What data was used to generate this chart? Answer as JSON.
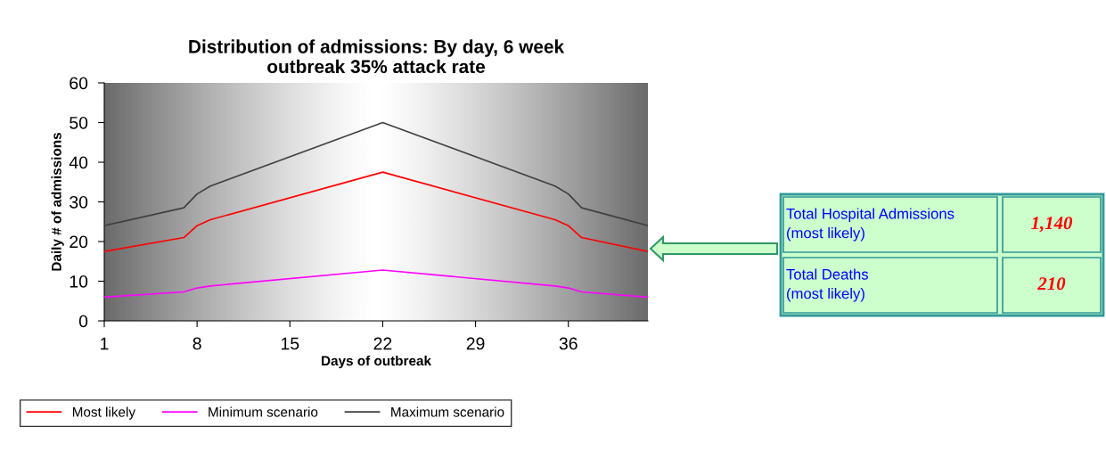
{
  "chart_data": {
    "type": "line",
    "title": "Distribution of admissions: By day, 6 week\noutbreak 35% attack rate",
    "xlabel": "Days of outbreak",
    "ylabel": "Daily # of admissions",
    "series": [
      {
        "name": "Most likely",
        "color": "#ff0000",
        "x": [
          1,
          7,
          8,
          9,
          22,
          35,
          36,
          37,
          42
        ],
        "values": [
          17.5,
          21,
          24,
          25.5,
          37.5,
          25.5,
          24,
          21,
          17.5
        ]
      },
      {
        "name": "Minimum scenario",
        "color": "#ff00ff",
        "x": [
          1,
          7,
          8,
          9,
          22,
          35,
          36,
          37,
          42
        ],
        "values": [
          6,
          7.3,
          8.3,
          8.8,
          12.8,
          8.8,
          8.3,
          7.3,
          6
        ]
      },
      {
        "name": "Maximum scenario",
        "color": "#404040",
        "x": [
          1,
          7,
          8,
          9,
          22,
          35,
          36,
          37,
          42
        ],
        "values": [
          24,
          28.5,
          32,
          34,
          50,
          34,
          32,
          28.5,
          24
        ]
      }
    ],
    "xlim": [
      1,
      42
    ],
    "xticks": [
      1,
      8,
      15,
      22,
      29,
      36
    ],
    "ylim": [
      0,
      60
    ],
    "yticks": [
      0,
      10,
      20,
      30,
      40,
      50,
      60
    ],
    "grid": false,
    "legend": "bottom",
    "marker": "none",
    "line_style": "solid",
    "annotations": [
      "Total Hospital Admissions\n(most likely)",
      "1,140",
      "Total Deaths\n(most likely)",
      "210"
    ]
  }
}
